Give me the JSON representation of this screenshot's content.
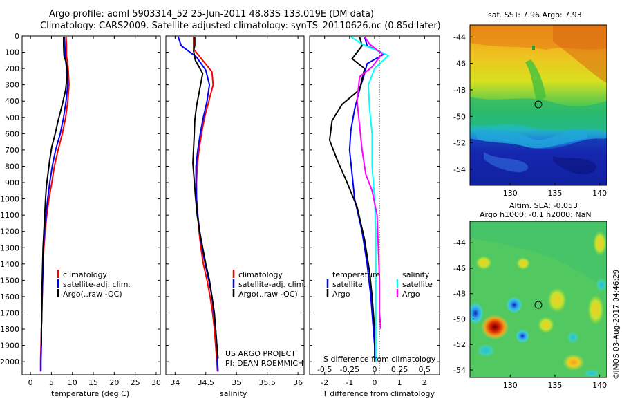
{
  "header": {
    "title_line1": "Argo profile: aoml 5903314_52 25-Jun-2011 48.83S 133.019E (DM data)",
    "title_line2": "Climatology: CARS2009. Satellite-adjusted climatology: synTS_20110626.nc (0.85d later)"
  },
  "colors": {
    "climatology": "#ff0000",
    "satellite": "#0000ff",
    "argo": "#000000",
    "sal_satellite": "#00ffff",
    "sal_argo": "#ff00ff"
  },
  "chart_data": [
    {
      "type": "line",
      "xlabel": "temperature (deg C)",
      "ylabel": "",
      "xlim": [
        -2,
        31
      ],
      "ylim": [
        2080,
        0
      ],
      "x_ticks": [
        "0",
        "5",
        "10",
        "15",
        "20",
        "25",
        "30"
      ],
      "y_ticks": [
        "0",
        "100",
        "200",
        "300",
        "400",
        "500",
        "600",
        "700",
        "800",
        "900",
        "1000",
        "1100",
        "1200",
        "1300",
        "1400",
        "1500",
        "1600",
        "1700",
        "1800",
        "1900",
        "2000"
      ],
      "legend": [
        "climatology",
        "satellite-adj. clim.",
        "Argo(..raw -QC)"
      ],
      "series": [
        {
          "name": "climatology",
          "color": "#ff0000",
          "points": [
            [
              8.5,
              5
            ],
            [
              8.6,
              50
            ],
            [
              8.6,
              120
            ],
            [
              9.0,
              200
            ],
            [
              9.2,
              300
            ],
            [
              8.9,
              400
            ],
            [
              8.4,
              500
            ],
            [
              7.6,
              600
            ],
            [
              6.6,
              700
            ],
            [
              5.7,
              800
            ],
            [
              5.1,
              900
            ],
            [
              4.4,
              1000
            ],
            [
              3.9,
              1100
            ],
            [
              3.5,
              1200
            ],
            [
              3.2,
              1300
            ],
            [
              3.0,
              1400
            ],
            [
              2.9,
              1500
            ],
            [
              2.8,
              1600
            ],
            [
              2.7,
              1700
            ],
            [
              2.6,
              1800
            ],
            [
              2.5,
              1900
            ],
            [
              2.4,
              2000
            ],
            [
              2.4,
              2060
            ]
          ]
        },
        {
          "name": "satellite-adj. clim.",
          "color": "#0000ff",
          "points": [
            [
              8.1,
              5
            ],
            [
              8.2,
              50
            ],
            [
              8.3,
              120
            ],
            [
              8.6,
              200
            ],
            [
              8.9,
              300
            ],
            [
              8.5,
              400
            ],
            [
              7.9,
              500
            ],
            [
              7.1,
              600
            ],
            [
              6.0,
              700
            ],
            [
              5.2,
              800
            ],
            [
              4.6,
              900
            ],
            [
              4.1,
              1000
            ],
            [
              3.7,
              1100
            ],
            [
              3.3,
              1200
            ],
            [
              3.1,
              1300
            ],
            [
              3.0,
              1400
            ],
            [
              2.9,
              1500
            ],
            [
              2.8,
              1600
            ],
            [
              2.7,
              1700
            ],
            [
              2.6,
              1800
            ],
            [
              2.6,
              1900
            ],
            [
              2.5,
              2000
            ],
            [
              2.5,
              2060
            ]
          ]
        },
        {
          "name": "Argo(..raw -QC)",
          "color": "#000000",
          "points": [
            [
              7.9,
              5
            ],
            [
              7.9,
              60
            ],
            [
              8.0,
              120
            ],
            [
              8.6,
              170
            ],
            [
              8.8,
              230
            ],
            [
              8.4,
              330
            ],
            [
              7.5,
              430
            ],
            [
              6.6,
              520
            ],
            [
              5.9,
              600
            ],
            [
              5.1,
              680
            ],
            [
              4.6,
              760
            ],
            [
              4.2,
              840
            ],
            [
              3.8,
              920
            ],
            [
              3.6,
              1000
            ],
            [
              3.4,
              1100
            ],
            [
              3.2,
              1200
            ],
            [
              3.0,
              1300
            ],
            [
              2.9,
              1400
            ],
            [
              2.8,
              1500
            ],
            [
              2.7,
              1600
            ],
            [
              2.7,
              1700
            ],
            [
              2.6,
              1800
            ],
            [
              2.6,
              1900
            ]
          ]
        }
      ]
    },
    {
      "type": "line",
      "xlabel": "salinity",
      "ylabel": "",
      "xlim": [
        33.85,
        36.1
      ],
      "ylim": [
        2080,
        0
      ],
      "x_ticks": [
        "34",
        "34.5",
        "35",
        "35.5",
        "36"
      ],
      "legend": [
        "climatology",
        "satellite-adj. clim.",
        "Argo(..raw -QC)"
      ],
      "annotation_line1": "US ARGO PROJECT",
      "annotation_line2": "PI: DEAN ROEMMICH",
      "series": [
        {
          "name": "climatology",
          "color": "#ff0000",
          "points": [
            [
              34.3,
              5
            ],
            [
              34.3,
              80
            ],
            [
              34.45,
              150
            ],
            [
              34.6,
              220
            ],
            [
              34.62,
              300
            ],
            [
              34.55,
              400
            ],
            [
              34.48,
              500
            ],
            [
              34.43,
              600
            ],
            [
              34.39,
              700
            ],
            [
              34.36,
              800
            ],
            [
              34.35,
              900
            ],
            [
              34.35,
              1000
            ],
            [
              34.37,
              1100
            ],
            [
              34.39,
              1200
            ],
            [
              34.42,
              1300
            ],
            [
              34.46,
              1400
            ],
            [
              34.52,
              1500
            ],
            [
              34.57,
              1600
            ],
            [
              34.61,
              1700
            ],
            [
              34.64,
              1800
            ],
            [
              34.66,
              1900
            ],
            [
              34.68,
              2000
            ],
            [
              34.69,
              2060
            ]
          ]
        },
        {
          "name": "satellite-adj. clim.",
          "color": "#0000ff",
          "points": [
            [
              34.05,
              5
            ],
            [
              34.1,
              60
            ],
            [
              34.35,
              130
            ],
            [
              34.5,
              210
            ],
            [
              34.56,
              300
            ],
            [
              34.52,
              400
            ],
            [
              34.46,
              500
            ],
            [
              34.41,
              600
            ],
            [
              34.37,
              700
            ],
            [
              34.34,
              800
            ],
            [
              34.34,
              900
            ],
            [
              34.35,
              1000
            ],
            [
              34.37,
              1100
            ],
            [
              34.4,
              1200
            ],
            [
              34.44,
              1300
            ],
            [
              34.49,
              1400
            ],
            [
              34.55,
              1500
            ],
            [
              34.6,
              1600
            ],
            [
              34.63,
              1700
            ],
            [
              34.66,
              1800
            ],
            [
              34.68,
              1900
            ],
            [
              34.69,
              2000
            ],
            [
              34.7,
              2060
            ]
          ]
        },
        {
          "name": "Argo(..raw -QC)",
          "color": "#000000",
          "points": [
            [
              34.32,
              5
            ],
            [
              34.32,
              60
            ],
            [
              34.3,
              90
            ],
            [
              34.33,
              150
            ],
            [
              34.45,
              230
            ],
            [
              34.4,
              330
            ],
            [
              34.35,
              430
            ],
            [
              34.32,
              520
            ],
            [
              34.31,
              620
            ],
            [
              34.3,
              700
            ],
            [
              34.29,
              780
            ],
            [
              34.31,
              880
            ],
            [
              34.33,
              980
            ],
            [
              34.36,
              1100
            ],
            [
              34.4,
              1200
            ],
            [
              34.45,
              1300
            ],
            [
              34.5,
              1400
            ],
            [
              34.56,
              1500
            ],
            [
              34.6,
              1600
            ],
            [
              34.64,
              1700
            ],
            [
              34.66,
              1800
            ],
            [
              34.68,
              1900
            ],
            [
              34.7,
              1980
            ]
          ]
        }
      ]
    },
    {
      "type": "line",
      "xlabel": "T difference from climatology",
      "xlabel_top": "S difference from climatology",
      "xlim": [
        -2.6,
        2.6
      ],
      "ylim": [
        2080,
        0
      ],
      "x_ticks": [
        "-2",
        "-1",
        "0",
        "1",
        "2"
      ],
      "x_ticks_top": [
        "-0.5",
        "-0.25",
        "0",
        "0.25",
        "0.5"
      ],
      "legend_temperature_title": "temperature",
      "legend_salinity_title": "salinity",
      "legend": [
        "satellite",
        "Argo",
        "satellite",
        "Argo"
      ],
      "series": [
        {
          "name": "satellite",
          "color": "#0000ff",
          "points": [
            [
              -0.4,
              5
            ],
            [
              -0.3,
              60
            ],
            [
              0.4,
              110
            ],
            [
              -0.3,
              170
            ],
            [
              -0.4,
              230
            ],
            [
              -0.6,
              330
            ],
            [
              -0.8,
              450
            ],
            [
              -0.95,
              580
            ],
            [
              -1.0,
              700
            ],
            [
              -0.9,
              850
            ],
            [
              -0.8,
              1000
            ],
            [
              -0.5,
              1200
            ],
            [
              -0.3,
              1400
            ],
            [
              -0.15,
              1600
            ],
            [
              -0.05,
              1800
            ],
            [
              0.0,
              1900
            ],
            [
              0.0,
              2000
            ]
          ]
        },
        {
          "name": "Argo",
          "color": "#000000",
          "points": [
            [
              -0.6,
              5
            ],
            [
              -0.5,
              60
            ],
            [
              -0.9,
              140
            ],
            [
              -0.4,
              200
            ],
            [
              -0.6,
              330
            ],
            [
              -1.3,
              420
            ],
            [
              -1.7,
              520
            ],
            [
              -1.8,
              640
            ],
            [
              -1.5,
              760
            ],
            [
              -1.1,
              900
            ],
            [
              -0.7,
              1050
            ],
            [
              -0.4,
              1250
            ],
            [
              -0.2,
              1450
            ],
            [
              -0.1,
              1600
            ],
            [
              0.0,
              1800
            ],
            [
              0.0,
              1900
            ]
          ]
        },
        {
          "name": "satellite",
          "color": "#00ffff",
          "points": [
            [
              -0.95,
              5
            ],
            [
              -0.5,
              50
            ],
            [
              0.55,
              120
            ],
            [
              0.0,
              200
            ],
            [
              -0.25,
              300
            ],
            [
              -0.2,
              450
            ],
            [
              -0.1,
              600
            ],
            [
              -0.1,
              800
            ],
            [
              0.0,
              1000
            ],
            [
              0.05,
              1200
            ],
            [
              0.05,
              1400
            ],
            [
              0.05,
              1600
            ],
            [
              0.05,
              1800
            ],
            [
              0.05,
              2000
            ]
          ]
        },
        {
          "name": "Argo",
          "color": "#ff00ff",
          "points": [
            [
              -0.4,
              5
            ],
            [
              -0.2,
              50
            ],
            [
              0.3,
              110
            ],
            [
              -0.1,
              190
            ],
            [
              -0.6,
              250
            ],
            [
              -0.7,
              400
            ],
            [
              -0.6,
              550
            ],
            [
              -0.5,
              700
            ],
            [
              -0.35,
              850
            ],
            [
              -0.1,
              950
            ],
            [
              0.1,
              1100
            ],
            [
              0.15,
              1300
            ],
            [
              0.2,
              1500
            ],
            [
              0.2,
              1700
            ],
            [
              0.25,
              1800
            ]
          ]
        }
      ]
    },
    {
      "type": "heatmap",
      "title": "sat. SST: 7.96 Argo: 7.93",
      "x_ticks": [
        "130",
        "135",
        "140"
      ],
      "y_ticks": [
        "-44",
        "-46",
        "-48",
        "-50",
        "-52",
        "-54"
      ],
      "marker": [
        133.0,
        -48.83
      ]
    },
    {
      "type": "heatmap",
      "title_line1": "Altim. SLA: -0.053",
      "title_line2": "Argo h1000: -0.1 h2000: NaN",
      "x_ticks": [
        "130",
        "135",
        "140"
      ],
      "y_ticks": [
        "-44",
        "-46",
        "-48",
        "-50",
        "-52",
        "-54"
      ],
      "marker": [
        133.0,
        -48.83
      ]
    }
  ],
  "footer": {
    "stamp": "©IMOS 03-Aug-2017 04:46:29"
  }
}
